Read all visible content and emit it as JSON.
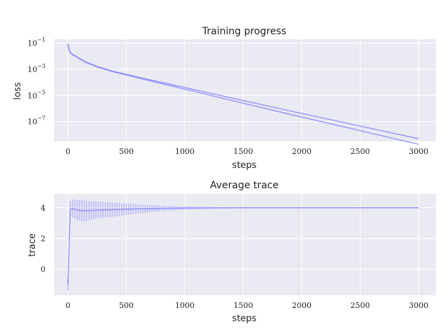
{
  "chart_data": [
    {
      "type": "line",
      "title": "Training progress",
      "xlabel": "steps",
      "ylabel": "loss",
      "yscale": "log",
      "xlim": [
        -120,
        3150
      ],
      "ylim": [
        3e-09,
        0.2
      ],
      "xticks": [
        0,
        500,
        1000,
        1500,
        2000,
        2500,
        3000
      ],
      "yticks": [
        {
          "value": 0.1,
          "label": "10",
          "exp": "−1"
        },
        {
          "value": 0.001,
          "label": "10",
          "exp": "−3"
        },
        {
          "value": 1e-05,
          "label": "10",
          "exp": "−5"
        },
        {
          "value": 1e-07,
          "label": "10",
          "exp": "−7"
        }
      ],
      "grid": true,
      "color": "#8080ff",
      "series": [
        {
          "x": [
            0,
            5,
            10,
            20,
            40,
            80,
            150,
            250,
            400,
            600,
            800,
            1000,
            1500,
            2000,
            2500,
            3000
          ],
          "y": [
            0.08,
            0.05,
            0.03,
            0.018,
            0.013,
            0.008,
            0.0035,
            0.0015,
            0.0006,
            0.00022,
            8e-05,
            3e-05,
            2.5e-06,
            2.2e-07,
            2e-08,
            1.8e-09
          ]
        },
        {
          "x": [
            0,
            5,
            10,
            20,
            40,
            80,
            150,
            250,
            400,
            600,
            800,
            1000,
            1500,
            2000,
            2500,
            3000
          ],
          "y": [
            0.09,
            0.055,
            0.032,
            0.02,
            0.014,
            0.0085,
            0.0037,
            0.0016,
            0.00065,
            0.00025,
            0.0001,
            4e-05,
            4e-06,
            4.2e-07,
            4.5e-08,
            4.8e-09
          ]
        }
      ]
    },
    {
      "type": "line",
      "title": "Average trace",
      "xlabel": "steps",
      "ylabel": "trace",
      "xlim": [
        -120,
        3150
      ],
      "ylim": [
        -1.7,
        4.9
      ],
      "xticks": [
        0,
        500,
        1000,
        1500,
        2000,
        2500,
        3000
      ],
      "yticks": [
        0,
        2,
        4
      ],
      "grid": true,
      "color": "#8080ff",
      "mean": {
        "x": [
          0,
          20,
          40,
          80,
          150,
          250,
          400,
          600,
          800,
          1000,
          1500,
          2000,
          2500,
          3000
        ],
        "y": [
          -1.0,
          3.9,
          3.95,
          3.85,
          3.8,
          3.85,
          3.88,
          3.93,
          3.96,
          3.98,
          4.0,
          4.0,
          4.0,
          4.0
        ]
      },
      "spread": {
        "step": 20,
        "start": 0,
        "end": 2980,
        "amp_points": [
          [
            0,
            0.4
          ],
          [
            40,
            0.6
          ],
          [
            120,
            0.7
          ],
          [
            200,
            0.6
          ],
          [
            400,
            0.45
          ],
          [
            600,
            0.3
          ],
          [
            800,
            0.18
          ],
          [
            1000,
            0.1
          ],
          [
            1300,
            0.04
          ],
          [
            1600,
            0.02
          ],
          [
            3000,
            0.01
          ]
        ]
      }
    }
  ]
}
